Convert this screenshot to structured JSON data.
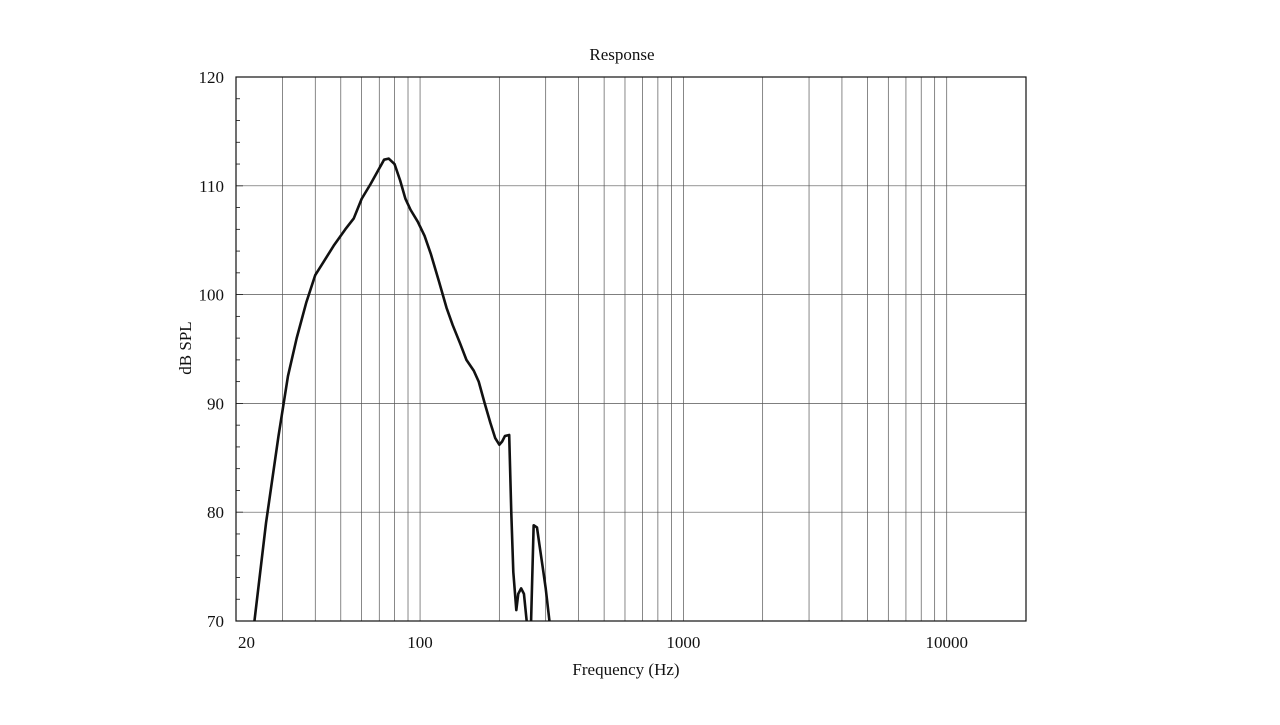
{
  "chart_data": {
    "type": "line",
    "title": "Response",
    "xlabel": "Frequency (Hz)",
    "ylabel": "dB SPL",
    "x_scale": "log",
    "xlim": [
      20,
      20000
    ],
    "ylim": [
      70,
      120
    ],
    "x_tick_labels": [
      "20",
      "100",
      "1000",
      "10000"
    ],
    "x_ticks": [
      20,
      100,
      1000,
      10000
    ],
    "y_ticks": [
      70,
      80,
      90,
      100,
      110,
      120
    ],
    "y_tick_labels": [
      "70",
      "80",
      "90",
      "100",
      "110",
      "120"
    ],
    "grid": true,
    "line_color": "#111111",
    "series": [
      {
        "segments": [
          [
            [
              23.5,
              70
            ],
            [
              26,
              79
            ],
            [
              29,
              87
            ],
            [
              31.5,
              92.5
            ],
            [
              34,
              96
            ],
            [
              37,
              99.3
            ],
            [
              40,
              101.8
            ],
            [
              43,
              103
            ],
            [
              47,
              104.5
            ],
            [
              52,
              106
            ],
            [
              56,
              107
            ],
            [
              60,
              108.8
            ],
            [
              65,
              110.2
            ],
            [
              70,
              111.6
            ],
            [
              73,
              112.4
            ],
            [
              76,
              112.5
            ],
            [
              80,
              112
            ],
            [
              84,
              110.5
            ],
            [
              88,
              108.8
            ],
            [
              92,
              107.8
            ],
            [
              98,
              106.7
            ],
            [
              104,
              105.4
            ],
            [
              110,
              103.7
            ],
            [
              118,
              101.2
            ],
            [
              126,
              98.8
            ],
            [
              133,
              97.2
            ],
            [
              142,
              95.5
            ],
            [
              150,
              94
            ],
            [
              160,
              93
            ],
            [
              167,
              92
            ],
            [
              176,
              90
            ],
            [
              185,
              88.2
            ],
            [
              193,
              86.8
            ],
            [
              200,
              86.2
            ],
            [
              205,
              86.5
            ],
            [
              210,
              87
            ],
            [
              218,
              87.1
            ],
            [
              222,
              80
            ],
            [
              226,
              74.5
            ],
            [
              232,
              71
            ],
            [
              236,
              72.5
            ],
            [
              242,
              73
            ],
            [
              248,
              72.5
            ],
            [
              254,
              70
            ]
          ],
          [
            [
              264,
              70
            ],
            [
              270,
              78.8
            ],
            [
              278,
              78.6
            ],
            [
              284,
              77
            ],
            [
              292,
              75
            ],
            [
              300,
              73
            ],
            [
              310,
              70
            ]
          ]
        ]
      }
    ]
  }
}
